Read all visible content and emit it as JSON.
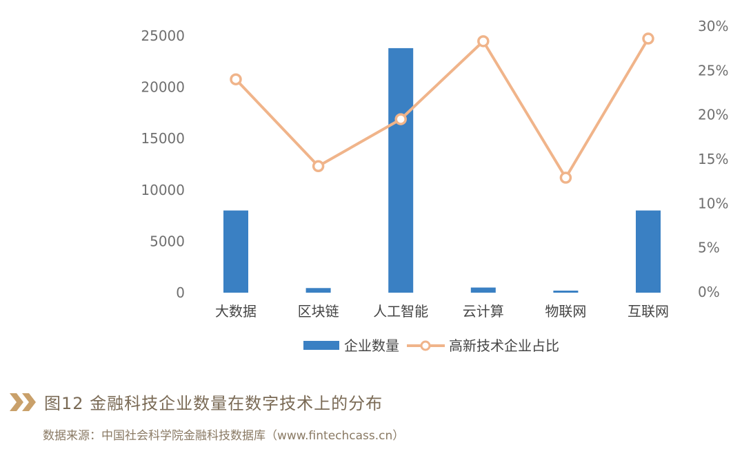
{
  "chart_data": {
    "type": "bar",
    "categories": [
      "大数据",
      "区块链",
      "人工智能",
      "云计算",
      "物联网",
      "互联网"
    ],
    "series": [
      {
        "name": "企业数量",
        "type": "bar",
        "axis": "left",
        "color": "#3a80c3",
        "values": [
          8000,
          450,
          23800,
          500,
          200,
          8000
        ]
      },
      {
        "name": "高新技术企业占比",
        "type": "line",
        "axis": "right",
        "color": "#f0b48a",
        "values": [
          0.24,
          0.142,
          0.195,
          0.283,
          0.129,
          0.286
        ]
      }
    ],
    "left_axis": {
      "ticks": [
        "0",
        "5000",
        "10000",
        "15000",
        "20000",
        "25000"
      ],
      "range": [
        0,
        25000
      ]
    },
    "right_axis": {
      "ticks": [
        "0%",
        "5%",
        "10%",
        "15%",
        "20%",
        "25%",
        "30%"
      ],
      "range": [
        0,
        0.3
      ]
    },
    "legend_position": "bottom",
    "grid": false
  },
  "caption": {
    "title": "图12  金融科技企业数量在数字技术上的分布",
    "source": "数据来源：中国社会科学院金融科技数据库（www.fintechcass.cn）"
  },
  "colors": {
    "accent": "#c9a06a",
    "bar": "#3a80c3",
    "line": "#f0b48a"
  }
}
